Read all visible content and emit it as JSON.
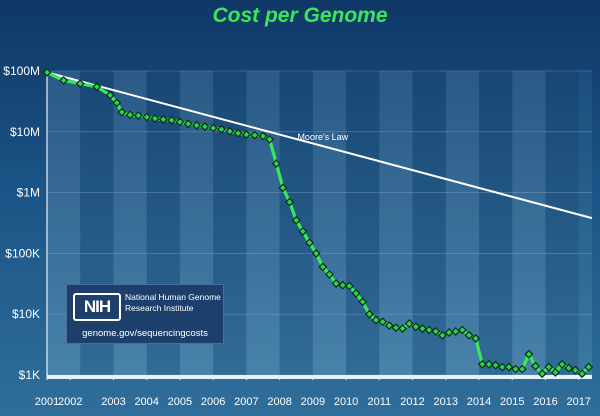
{
  "chart_data": {
    "type": "line",
    "title": "Cost per Genome",
    "xlabel": "",
    "ylabel": "",
    "yscale": "log",
    "ylim": [
      1000,
      100000000
    ],
    "xlim": [
      2001.0,
      2017.4
    ],
    "y_ticks": [
      {
        "value": 100000000,
        "label": "$100M"
      },
      {
        "value": 10000000,
        "label": "$10M"
      },
      {
        "value": 1000000,
        "label": "$1M"
      },
      {
        "value": 100000,
        "label": "$100K"
      },
      {
        "value": 10000,
        "label": "$10K"
      },
      {
        "value": 1000,
        "label": "$1K"
      }
    ],
    "x_ticks": [
      {
        "value": 2001.0,
        "label": "2001"
      },
      {
        "value": 2001.7,
        "label": "2002"
      },
      {
        "value": 2003,
        "label": "2003"
      },
      {
        "value": 2004,
        "label": "2004"
      },
      {
        "value": 2005,
        "label": "2005"
      },
      {
        "value": 2006,
        "label": "2006"
      },
      {
        "value": 2007,
        "label": "2007"
      },
      {
        "value": 2008,
        "label": "2008"
      },
      {
        "value": 2009,
        "label": "2009"
      },
      {
        "value": 2010,
        "label": "2010"
      },
      {
        "value": 2011,
        "label": "2011"
      },
      {
        "value": 2012,
        "label": "2012"
      },
      {
        "value": 2013,
        "label": "2013"
      },
      {
        "value": 2014,
        "label": "2014"
      },
      {
        "value": 2015,
        "label": "2015"
      },
      {
        "value": 2016,
        "label": "2016"
      },
      {
        "value": 2017,
        "label": "2017"
      }
    ],
    "series": [
      {
        "name": "",
        "color": "#39e85a",
        "x": [
          2001.0,
          2001.5,
          2002.0,
          2002.5,
          2002.9,
          2003.1,
          2003.25,
          2003.5,
          2003.75,
          2004.0,
          2004.25,
          2004.5,
          2004.75,
          2005.0,
          2005.25,
          2005.5,
          2005.75,
          2006.0,
          2006.25,
          2006.5,
          2006.75,
          2007.0,
          2007.25,
          2007.5,
          2007.7,
          2007.9,
          2008.1,
          2008.3,
          2008.5,
          2008.7,
          2008.9,
          2009.1,
          2009.3,
          2009.5,
          2009.7,
          2009.9,
          2010.1,
          2010.3,
          2010.5,
          2010.7,
          2010.9,
          2011.1,
          2011.3,
          2011.5,
          2011.7,
          2011.9,
          2012.1,
          2012.3,
          2012.5,
          2012.7,
          2012.9,
          2013.1,
          2013.3,
          2013.5,
          2013.7,
          2013.9,
          2014.1,
          2014.3,
          2014.5,
          2014.7,
          2014.9,
          2015.1,
          2015.3,
          2015.5,
          2015.7,
          2015.9,
          2016.1,
          2016.3,
          2016.5,
          2016.7,
          2016.9,
          2017.1,
          2017.3
        ],
        "y": [
          95000000,
          70000000,
          62000000,
          55000000,
          40000000,
          30000000,
          21000000,
          19000000,
          18500000,
          17500000,
          16500000,
          16000000,
          15500000,
          14500000,
          13500000,
          12800000,
          12200000,
          11500000,
          11000000,
          10200000,
          9500000,
          9000000,
          8800000,
          8500000,
          7500000,
          3000000,
          1200000,
          700000,
          350000,
          230000,
          150000,
          100000,
          60000,
          45000,
          32000,
          30000,
          29000,
          22000,
          16000,
          10000,
          8000,
          7500,
          6500,
          6000,
          5800,
          7000,
          6200,
          5800,
          5500,
          5200,
          4500,
          5000,
          5200,
          5500,
          4500,
          4000,
          1500,
          1500,
          1450,
          1350,
          1350,
          1250,
          1250,
          2200,
          1400,
          1050,
          1350,
          1100,
          1500,
          1300,
          1200,
          1050,
          1350
        ]
      }
    ],
    "reference_line": {
      "label": "Moore's Law",
      "color": "#ffffff",
      "x": [
        2001.0,
        2017.4
      ],
      "y": [
        95000000,
        380000
      ]
    }
  },
  "logo": {
    "mark": "NIH",
    "name": "National Human Genome Research Institute",
    "url": "genome.gov/sequencingcosts"
  }
}
